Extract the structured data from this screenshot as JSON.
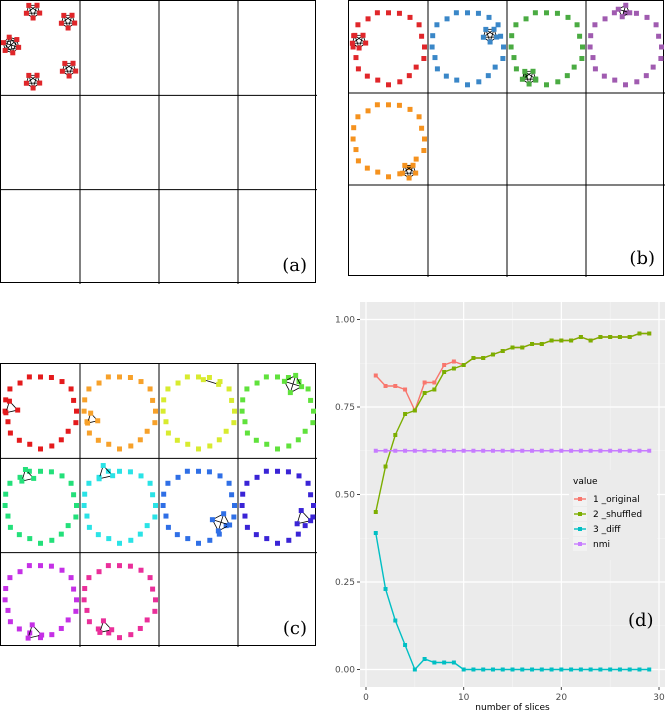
{
  "panels": {
    "a": {
      "label": "(a)",
      "colors": [
        "#e0262a"
      ]
    },
    "b": {
      "label": "(b)",
      "colors": [
        "#e0262a",
        "#3a87c8",
        "#4aab42",
        "#a05bb0",
        "#f5921e"
      ]
    },
    "c": {
      "label": "(c)",
      "colors": [
        "#e41a1c",
        "#f7a12a",
        "#d8eb2f",
        "#60e23c",
        "#23e07a",
        "#2ae3e6",
        "#2f6fe6",
        "#3a24d6",
        "#c530e6",
        "#ea2f9a"
      ]
    },
    "d": {
      "label": "(d)"
    }
  },
  "chart_data": {
    "type": "line",
    "xlabel": "number of slices",
    "ylabel": "",
    "xlim": [
      0,
      30
    ],
    "ylim": [
      0,
      1
    ],
    "xticks": [
      "0",
      "10",
      "20",
      "30"
    ],
    "yticks": [
      "0.00",
      "0.25",
      "0.50",
      "0.75",
      "1.00"
    ],
    "legend_title": "value",
    "legend_position": "right",
    "background": "#ebebeb",
    "grid": true,
    "series": [
      {
        "name": "1 _original",
        "color": "#f8766d",
        "x": [
          1,
          2,
          3,
          4,
          5,
          6,
          7,
          8,
          9,
          10,
          11,
          12,
          13,
          14,
          15,
          16,
          17,
          18,
          19,
          20,
          21,
          22,
          23,
          24,
          25,
          26,
          27,
          28,
          29
        ],
        "values": [
          0.84,
          0.81,
          0.81,
          0.8,
          0.74,
          0.82,
          0.82,
          0.87,
          0.88,
          0.87,
          0.89,
          0.89,
          0.9,
          0.91,
          0.92,
          0.92,
          0.93,
          0.93,
          0.94,
          0.94,
          0.94,
          0.95,
          0.94,
          0.95,
          0.95,
          0.95,
          0.95,
          0.96,
          0.96
        ]
      },
      {
        "name": "2 _shuffled",
        "color": "#7cae00",
        "x": [
          1,
          2,
          3,
          4,
          5,
          6,
          7,
          8,
          9,
          10,
          11,
          12,
          13,
          14,
          15,
          16,
          17,
          18,
          19,
          20,
          21,
          22,
          23,
          24,
          25,
          26,
          27,
          28,
          29
        ],
        "values": [
          0.45,
          0.58,
          0.67,
          0.73,
          0.74,
          0.79,
          0.8,
          0.85,
          0.86,
          0.87,
          0.89,
          0.89,
          0.9,
          0.91,
          0.92,
          0.92,
          0.93,
          0.93,
          0.94,
          0.94,
          0.94,
          0.95,
          0.94,
          0.95,
          0.95,
          0.95,
          0.95,
          0.96,
          0.96
        ]
      },
      {
        "name": "3 _diff",
        "color": "#00bfc4",
        "x": [
          1,
          2,
          3,
          4,
          5,
          6,
          7,
          8,
          9,
          10,
          11,
          12,
          13,
          14,
          15,
          16,
          17,
          18,
          19,
          20,
          21,
          22,
          23,
          24,
          25,
          26,
          27,
          28,
          29
        ],
        "values": [
          0.39,
          0.23,
          0.14,
          0.07,
          0.0,
          0.03,
          0.02,
          0.02,
          0.02,
          0.0,
          0.0,
          0.0,
          0.0,
          0.0,
          0.0,
          0.0,
          0.0,
          0.0,
          0.0,
          0.0,
          0.0,
          0.0,
          0.0,
          0.0,
          0.0,
          0.0,
          0.0,
          0.0,
          0.0
        ]
      },
      {
        "name": "nmi",
        "color": "#c77cff",
        "x": [
          1,
          2,
          3,
          4,
          5,
          6,
          7,
          8,
          9,
          10,
          11,
          12,
          13,
          14,
          15,
          16,
          17,
          18,
          19,
          20,
          21,
          22,
          23,
          24,
          25,
          26,
          27,
          28,
          29
        ],
        "values": [
          0.625,
          0.625,
          0.625,
          0.625,
          0.625,
          0.625,
          0.625,
          0.625,
          0.625,
          0.625,
          0.625,
          0.625,
          0.625,
          0.625,
          0.625,
          0.625,
          0.625,
          0.625,
          0.625,
          0.625,
          0.625,
          0.625,
          0.625,
          0.625,
          0.625,
          0.625,
          0.625,
          0.625,
          0.625
        ]
      }
    ]
  }
}
